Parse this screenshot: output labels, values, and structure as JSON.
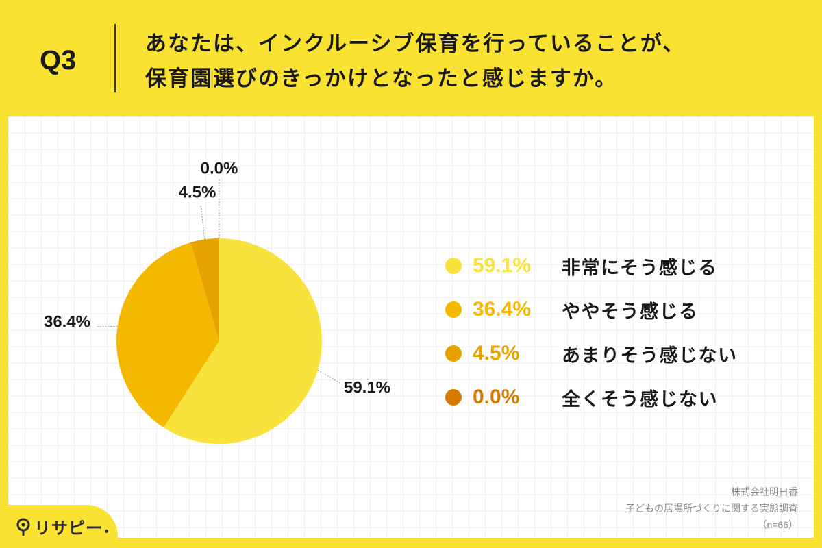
{
  "colors": {
    "background": "#FAE233",
    "panel": "#FFFFFF",
    "text": "#1A1A1A",
    "divider": "#333333",
    "source_text": "#8A8A8A",
    "leader_line": "#A3A3A3",
    "logo": "#2B2B2B"
  },
  "header": {
    "question_number": "Q3",
    "question_line_1": "あなたは、インクルーシブ保育を行っていることが、",
    "question_line_2": "保育園選びのきっかけとなったと感じますか。"
  },
  "chart_data": {
    "type": "pie",
    "legend_position": "right",
    "slices": [
      {
        "label": "非常にそう感じる",
        "value": 59.1,
        "display": "59.1%",
        "color": "#F8E33D"
      },
      {
        "label": "ややそう感じる",
        "value": 36.4,
        "display": "36.4%",
        "color": "#F5B800"
      },
      {
        "label": "あまりそう感じない",
        "value": 4.5,
        "display": "4.5%",
        "color": "#E8A200"
      },
      {
        "label": "全くそう感じない",
        "value": 0.0,
        "display": "0.0%",
        "color": "#D67B00"
      }
    ]
  },
  "source": {
    "company": "株式会社明日香",
    "survey_name": "子どもの居場所づくりに関する実態調査",
    "sample_size": "（n=66）"
  },
  "logo": {
    "text": "リサピー",
    "icon": "location-pin-icon"
  }
}
